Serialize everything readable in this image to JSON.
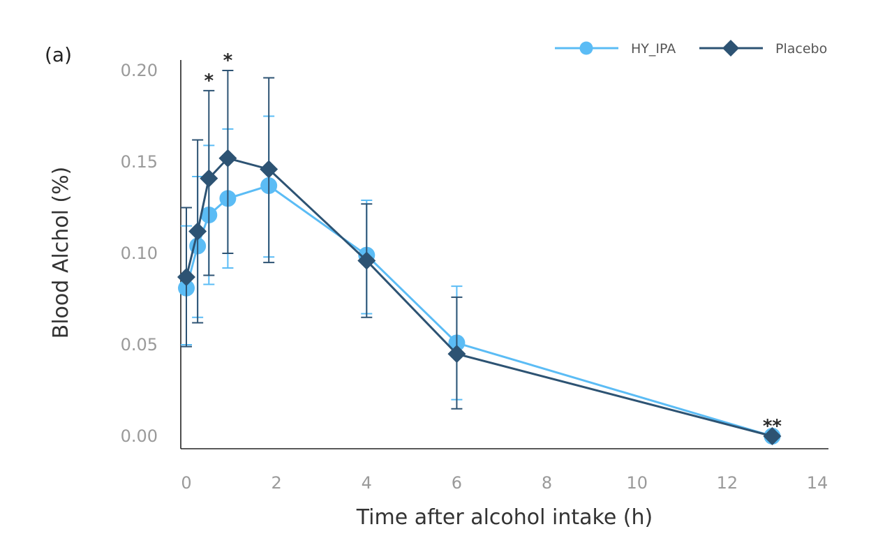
{
  "panel_label": "(a)",
  "chart_data": {
    "type": "line",
    "xlabel": "Time after alcohol intake (h)",
    "ylabel": "Blood Alchol (%)",
    "xlim": [
      0,
      14
    ],
    "ylim": [
      0,
      0.2
    ],
    "x_ticks": [
      0,
      2,
      4,
      6,
      8,
      10,
      12,
      14
    ],
    "x_tick_labels": [
      "0",
      "2",
      "4",
      "6",
      "8",
      "10",
      "12",
      "14"
    ],
    "y_ticks": [
      0,
      0.05,
      0.1,
      0.15,
      0.2
    ],
    "y_tick_labels": [
      "0.00",
      "0.05",
      "0.10",
      "0.15",
      "0.20"
    ],
    "grid": false,
    "legend_position": "top-right",
    "series": [
      {
        "name": "HY_IPA",
        "color": "#5bbcf5",
        "marker": "circle",
        "x": [
          0,
          0.25,
          0.5,
          0.92,
          1.83,
          4,
          6,
          13
        ],
        "y": [
          0.081,
          0.104,
          0.121,
          0.13,
          0.137,
          0.099,
          0.051,
          0.0
        ],
        "err_low": [
          0.05,
          0.065,
          0.083,
          0.092,
          0.098,
          0.067,
          0.02,
          null
        ],
        "err_high": [
          0.115,
          0.142,
          0.159,
          0.168,
          0.175,
          0.129,
          0.082,
          null
        ]
      },
      {
        "name": "Placebo",
        "color": "#2d5373",
        "marker": "diamond",
        "x": [
          0,
          0.25,
          0.5,
          0.92,
          1.83,
          4,
          6,
          13
        ],
        "y": [
          0.087,
          0.112,
          0.141,
          0.152,
          0.146,
          0.096,
          0.045,
          0.0
        ],
        "err_low": [
          0.049,
          0.062,
          0.088,
          0.1,
          0.095,
          0.065,
          0.015,
          null
        ],
        "err_high": [
          0.125,
          0.162,
          0.189,
          0.2,
          0.196,
          0.127,
          0.076,
          null
        ]
      }
    ],
    "annotations": [
      {
        "text": "*",
        "x": 0.5,
        "y": 0.189
      },
      {
        "text": "*",
        "x": 0.92,
        "y": 0.2
      },
      {
        "text": "**",
        "x": 13,
        "y": 0.0
      }
    ]
  }
}
